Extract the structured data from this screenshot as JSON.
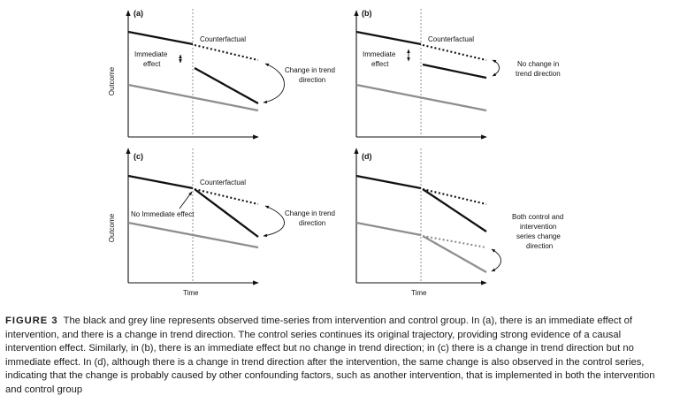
{
  "panels": {
    "a": {
      "label": "(a)",
      "counterfactual": "Counterfactual",
      "immediate_1": "Immediate",
      "immediate_2": "effect",
      "note_1": "Change in trend",
      "note_2": "direction"
    },
    "b": {
      "label": "(b)",
      "counterfactual": "Counterfactual",
      "immediate_1": "Immediate",
      "immediate_2": "effect",
      "note_1": "No change in",
      "note_2": "trend direction"
    },
    "c": {
      "label": "(c)",
      "counterfactual": "Counterfactual",
      "no_immediate": "No Immediate effect",
      "note_1": "Change in trend",
      "note_2": "direction"
    },
    "d": {
      "label": "(d)",
      "note_1": "Both control and",
      "note_2": "intervention",
      "note_3": "series change",
      "note_4": "direction"
    }
  },
  "axes": {
    "y_label": "Outcome",
    "x_label": "Time"
  },
  "caption": {
    "heading": "FIGURE 3",
    "text": "The black and grey line represents observed time-series from intervention and control group. In (a), there is an immediate effect of intervention, and there is a change in trend direction. The control series continues its original trajectory, providing strong evidence of a causal intervention effect. Similarly, in (b), there is an immediate effect but no change in trend direction; in (c) there is a change in trend direction but no immediate effect. In (d), although there is a change in trend direction after the intervention, the same change is also observed in the control series, indicating that the change is probably caused by other confounding factors, such as another intervention, that is implemented in both the intervention and control group"
  }
}
